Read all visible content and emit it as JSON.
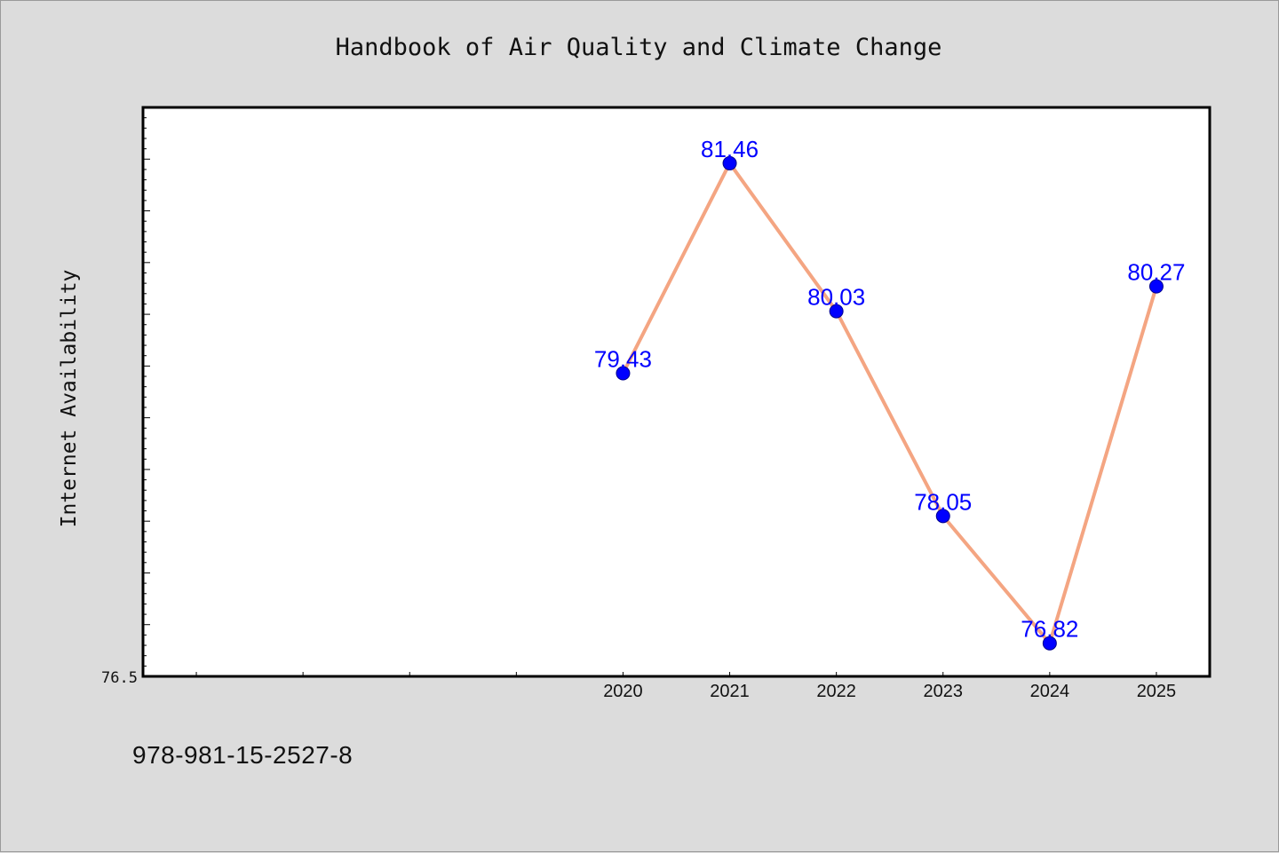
{
  "chart_data": {
    "type": "line",
    "title": "Handbook of Air Quality and Climate Change",
    "xlabel": "",
    "ylabel": "Internet Availability",
    "categories": [
      "2020",
      "2021",
      "2022",
      "2023",
      "2024",
      "2025"
    ],
    "series": [
      {
        "values": [
          79.43,
          81.46,
          80.03,
          78.05,
          76.82,
          80.27
        ]
      }
    ],
    "x_range": [
      2015.5,
      2025.5
    ],
    "ylim": [
      76.5,
      82.0
    ],
    "y_tick_labels": [
      "76.5"
    ],
    "grid": false,
    "legend": "none",
    "colors": {
      "line": "#f4a582",
      "marker": "#0000ff",
      "marker_edge": "#00008b",
      "data_label": "#0000ff",
      "plot_background": "#ffffff",
      "page_background": "#dcdcdc"
    }
  },
  "footer": {
    "isbn": "978-981-15-2527-8"
  }
}
